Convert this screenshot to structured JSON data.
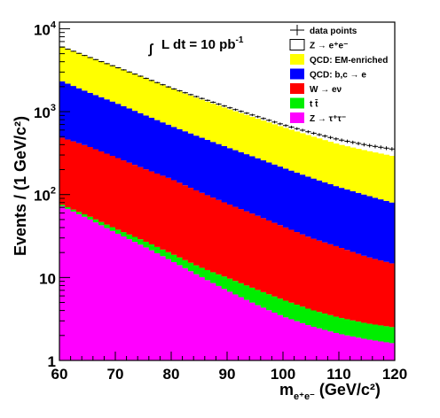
{
  "chart_data": {
    "type": "area",
    "stacked": true,
    "log_y": true,
    "xlabel": "m",
    "xlabel_sub": "e⁺e⁻",
    "xlabel_unit": " (GeV/c²)",
    "ylabel": "Events / (1 GeV/c²)",
    "xlim": [
      60,
      120
    ],
    "ylim": [
      1,
      12000
    ],
    "x_ticks": [
      {
        "value": 60,
        "label": "60"
      },
      {
        "value": 70,
        "label": "70"
      },
      {
        "value": 80,
        "label": "80"
      },
      {
        "value": 90,
        "label": "90"
      },
      {
        "value": 100,
        "label": "100"
      },
      {
        "value": 110,
        "label": "110"
      },
      {
        "value": 120,
        "label": "120"
      }
    ],
    "y_ticks": [
      {
        "value": 1,
        "label": "1",
        "sup": ""
      },
      {
        "value": 10,
        "label": "10",
        "sup": ""
      },
      {
        "value": 100,
        "label": "10",
        "sup": "2"
      },
      {
        "value": 1000,
        "label": "10",
        "sup": "3"
      },
      {
        "value": 10000,
        "label": "10",
        "sup": "4"
      }
    ],
    "annotation": {
      "integral": "∫",
      "text": "L dt = 10 pb",
      "sup": "-1"
    },
    "legend_position": "top-right",
    "bins": {
      "start": 60,
      "width": 1
    },
    "x": [
      60,
      65,
      70,
      75,
      80,
      85,
      90,
      95,
      100,
      105,
      110,
      115,
      120
    ],
    "series": [
      {
        "name": "Z → ττ",
        "symbol": "Z → τ⁺τ⁻",
        "color": "#ff00ff",
        "values": [
          75,
          52,
          35,
          24,
          16,
          10.5,
          7,
          4.8,
          3.4,
          2.6,
          2.1,
          1.8,
          1.6
        ]
      },
      {
        "name": "t t̄",
        "symbol": "t t̄",
        "color": "#00ee00",
        "values": [
          3,
          4,
          4,
          4,
          3.5,
          3,
          3,
          2.5,
          2,
          1.5,
          1.2,
          1.0,
          0.9
        ]
      },
      {
        "name": "W → eν",
        "symbol": "W → eν",
        "color": "#ff0000",
        "values": [
          420,
          330,
          245,
          180,
          135,
          95,
          68,
          50,
          36,
          26,
          20,
          15,
          12
        ]
      },
      {
        "name": "QCD: b,c → e",
        "symbol": "QCD: b,c → e",
        "color": "#0000ff",
        "values": [
          1900,
          1350,
          1000,
          720,
          520,
          390,
          295,
          225,
          170,
          130,
          100,
          80,
          64
        ]
      },
      {
        "name": "QCD: EM-enriched",
        "symbol": "QCD: EM-enriched",
        "color": "#ffff00",
        "values": [
          3800,
          2900,
          2200,
          1650,
          1230,
          930,
          720,
          560,
          440,
          350,
          280,
          240,
          210
        ]
      },
      {
        "name": "Z → ee",
        "symbol": "Z → e⁺e⁻",
        "color": "#ffffff",
        "values": [
          0,
          0,
          0,
          0,
          0,
          0,
          0,
          0,
          0,
          0,
          0,
          0,
          0
        ]
      }
    ],
    "data_points": {
      "name": "data points",
      "values": [
        6200,
        4620,
        3480,
        2600,
        1930,
        1480,
        1140,
        890,
        695,
        560,
        460,
        395,
        350
      ]
    }
  }
}
